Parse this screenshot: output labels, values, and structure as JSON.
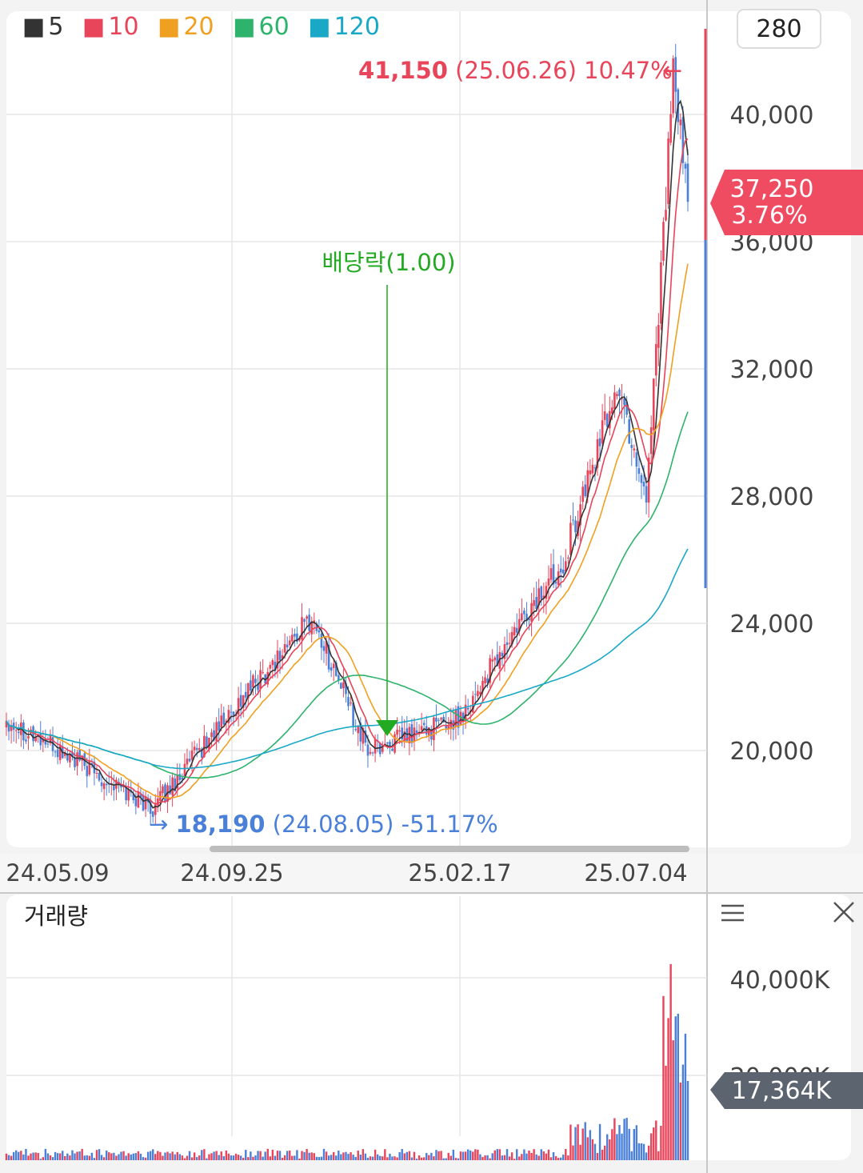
{
  "header": {
    "period_badge": "280",
    "legend": [
      {
        "label": "5",
        "color": "#333333"
      },
      {
        "label": "10",
        "color": "#e8445a"
      },
      {
        "label": "20",
        "color": "#f0a020"
      },
      {
        "label": "60",
        "color": "#2db36b"
      },
      {
        "label": "120",
        "color": "#19a8c6"
      }
    ]
  },
  "price_panel": {
    "high_marker": {
      "value": "41,150",
      "date": "(25.06.26)",
      "pct": "10.47%",
      "arrow": "←"
    },
    "low_marker": {
      "arrow": "→",
      "value": "18,190",
      "date": "(24.08.05)",
      "pct": "-51.17%"
    },
    "event": {
      "label": "배당락(1.00)"
    },
    "current": {
      "price": "37,250",
      "pct": "3.76%"
    },
    "ticks": [
      "40,000",
      "36,000",
      "32,000",
      "28,000",
      "24,000",
      "20,000"
    ],
    "x_labels": [
      "24.05.09",
      "24.09.25",
      "25.02.17",
      "25.07.04"
    ]
  },
  "volume_panel": {
    "title": "거래량",
    "ticks": [
      "40,000K",
      "20,000K"
    ],
    "current": "17,364K",
    "menu_icon": "menu-icon",
    "close_icon": "close-icon"
  },
  "colors": {
    "up": "#e8445a",
    "down": "#4a80d8",
    "event": "#22aa22",
    "grid": "#e6e6e6"
  },
  "chart_data": {
    "type": "candlestick",
    "y_unit": "KRW",
    "ylim": [
      16000,
      44000
    ],
    "moving_averages": [
      5,
      10,
      20,
      60,
      120
    ],
    "key_points": [
      {
        "date": "24.05.09",
        "price": 21000
      },
      {
        "date": "24.08.05",
        "price": 18190,
        "label": "low"
      },
      {
        "date": "24.09.25",
        "price": 21500
      },
      {
        "date": "24.11",
        "price": 24200
      },
      {
        "date": "24.12",
        "price": 20000,
        "event": "배당락(1.00)"
      },
      {
        "date": "25.02.17",
        "price": 21000
      },
      {
        "date": "25.04",
        "price": 26000
      },
      {
        "date": "25.05",
        "price": 31500
      },
      {
        "date": "25.06",
        "price": 28000
      },
      {
        "date": "25.06.26",
        "price": 41150,
        "label": "high"
      },
      {
        "date": "25.07.04",
        "price": 37250,
        "label": "current"
      }
    ],
    "volume": {
      "ylim": [
        0,
        45000
      ],
      "unit": "K",
      "current": 17364,
      "max": 43000
    }
  }
}
